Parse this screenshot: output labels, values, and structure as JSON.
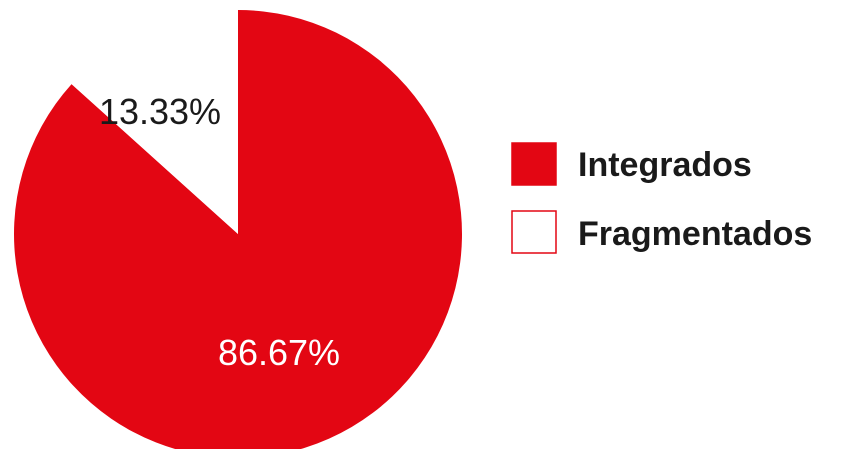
{
  "chart_data": {
    "type": "pie",
    "categories": [
      "Integrados",
      "Fragmentados"
    ],
    "values": [
      86.67,
      13.33
    ],
    "value_labels": [
      "86.67%",
      "13.33%"
    ],
    "colors": [
      "#e30613",
      "#ffffff"
    ],
    "label_colors": [
      "#ffffff",
      "#1a1a1a"
    ],
    "start_angle_deg": 0,
    "direction": "clockwise",
    "legend": {
      "placement": "right",
      "entries": [
        "Integrados",
        "Fragmentados"
      ]
    }
  }
}
